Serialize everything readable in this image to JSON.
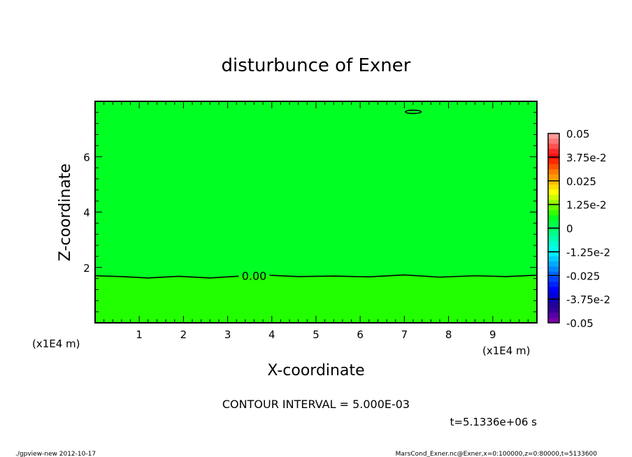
{
  "chart_data": {
    "type": "contour",
    "title": "disturbunce of Exner",
    "xlabel": "X-coordinate",
    "ylabel": "Z-coordinate",
    "x_unit": "(x1E4 m)",
    "y_unit": "(x1E4 m)",
    "xlim": [
      0,
      10
    ],
    "ylim": [
      0,
      8
    ],
    "xticks": [
      1,
      2,
      3,
      4,
      5,
      6,
      7,
      8,
      9
    ],
    "yticks": [
      2,
      4,
      6
    ],
    "contour_interval_text": "CONTOUR INTERVAL = 5.000E-03",
    "time_text": "t=5.1336e+06 s",
    "contours": [
      {
        "level_label": "0.00",
        "label_x": 3.6,
        "points": [
          [
            0,
            1.7
          ],
          [
            0.6,
            1.67
          ],
          [
            1.2,
            1.62
          ],
          [
            1.9,
            1.68
          ],
          [
            2.6,
            1.62
          ],
          [
            3.2,
            1.68
          ],
          [
            3.9,
            1.72
          ],
          [
            4.6,
            1.67
          ],
          [
            5.4,
            1.69
          ],
          [
            6.2,
            1.66
          ],
          [
            7.0,
            1.73
          ],
          [
            7.8,
            1.65
          ],
          [
            8.6,
            1.7
          ],
          [
            9.3,
            1.67
          ],
          [
            10,
            1.72
          ]
        ]
      },
      {
        "level_label": "",
        "closed": true,
        "center": [
          7.2,
          7.62
        ],
        "radius": [
          0.18,
          0.06
        ]
      }
    ],
    "fill_above": "#00ff22",
    "fill_below": "#22ff00",
    "colorbar": {
      "min": -0.05,
      "max": 0.05,
      "labels": [
        "0.05",
        "3.75e-2",
        "0.025",
        "1.25e-2",
        "0",
        "-1.25e-2",
        "-0.025",
        "-3.75e-2",
        "-0.05"
      ],
      "colors_top_to_bottom": [
        "#ff9a9a",
        "#ff7777",
        "#ff5050",
        "#ff2828",
        "#ff1010",
        "#ff2a00",
        "#ff5000",
        "#ff7a00",
        "#ff9a00",
        "#ffbb00",
        "#ffdd00",
        "#ffff00",
        "#ccff00",
        "#99ff00",
        "#66ff00",
        "#33ff00",
        "#00ff22",
        "#00ff44",
        "#00ff66",
        "#00ff88",
        "#00ffaa",
        "#00ffcc",
        "#00ffee",
        "#00eeff",
        "#00ccff",
        "#00aaff",
        "#0088ff",
        "#0066ff",
        "#0044ff",
        "#0022ff",
        "#0000ff",
        "#0000dd",
        "#1100bb",
        "#220099",
        "#330099",
        "#5500aa",
        "#7700aa"
      ]
    }
  },
  "footer": {
    "left": "./gpview-new  2012-10-17",
    "right": "MarsCond_Exner.nc@Exner,x=0:100000,z=0:80000,t=5133600"
  }
}
